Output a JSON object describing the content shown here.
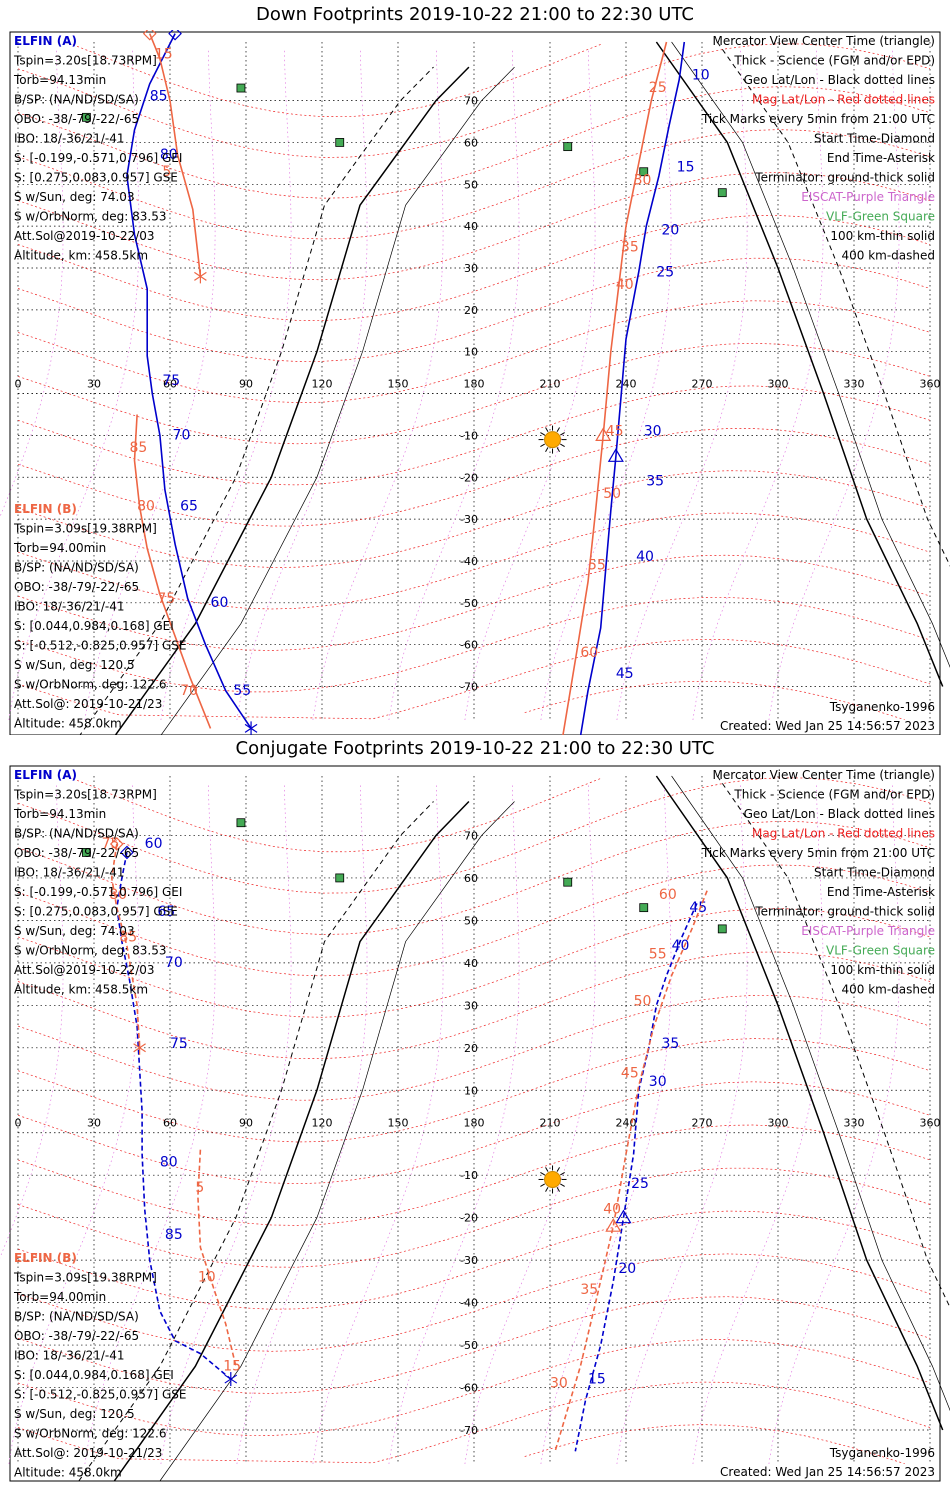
{
  "panels": [
    {
      "title": "Down Footprints 2019-10-22 21:00 to 22:30 UTC",
      "elfin_a": {
        "label": "ELFIN (A)",
        "lines": [
          "Tspin=3.20s[18.73RPM]",
          "Torb=94.13min",
          "B/SP: (NA/ND/SD/SA)",
          "OBO: -38/-79/-22/-65",
          "IBO: 18/-36/21/-41",
          "S: [-0.199,-0.571,0.796] GEI",
          "S: [0.275,0.083,0.957] GSE",
          "S w/Sun, deg: 74.03",
          "S w/OrbNorm, deg: 83.53",
          "Att.Sol@2019-10-22/03",
          "Altitude, km: 458.5km"
        ]
      },
      "elfin_b": {
        "label": "ELFIN (B)",
        "lines": [
          "Tspin=3.09s[19.38RPM]",
          "Torb=94.00min",
          "B/SP: (NA/ND/SD/SA)",
          "OBO: -38/-79/-22/-65",
          "IBO: 18/-36/21/-41",
          "S: [0.044,0.984,0.168] GEI",
          "S: [-0.512,-0.825,0.957] GSE",
          "S w/Sun, deg: 120.5",
          "S w/OrbNorm, deg: 122.6",
          "Att.Sol@: 2019-10-21/23",
          "Altitude: 458.0km"
        ]
      },
      "legend": [
        "Mercator View Center Time (triangle)",
        "Thick - Science (FGM and/or EPD)",
        "Geo Lat/Lon - Black dotted lines",
        "Mag Lat/Lon - Red dotted lines",
        "Tick Marks every 5min from 21:00 UTC",
        "Start Time-Diamond",
        "End Time-Asterisk",
        "Terminator: ground-thick solid",
        "EISCAT-Purple Triangle",
        "VLF-Green Square",
        "100 km-thin solid",
        "400 km-dashed"
      ],
      "model": "Tsyganenko-1996",
      "created": "Created: Wed Jan 25 14:56:57 2023"
    },
    {
      "title": "Conjugate Footprints 2019-10-22 21:00 to 22:30 UTC",
      "elfin_a": {
        "label": "ELFIN (A)",
        "lines": [
          "Tspin=3.20s[18.73RPM]",
          "Torb=94.13min",
          "B/SP: (NA/ND/SD/SA)",
          "OBO: -38/-79/-22/-65",
          "IBO: 18/-36/21/-41",
          "S: [-0.199,-0.571,0.796] GEI",
          "S: [0.275,0.083,0.957] GSE",
          "S w/Sun, deg: 74.03",
          "S w/OrbNorm, deg: 83.53",
          "Att.Sol@2019-10-22/03",
          "Altitude, km: 458.5km"
        ]
      },
      "elfin_b": {
        "label": "ELFIN (B)",
        "lines": [
          "Tspin=3.09s[19.38RPM]",
          "Torb=94.00min",
          "B/SP: (NA/ND/SD/SA)",
          "OBO: -38/-79/-22/-65",
          "IBO: 18/-36/21/-41",
          "S: [0.044,0.984,0.168] GEI",
          "S: [-0.512,-0.825,0.957] GSE",
          "S w/Sun, deg: 120.5",
          "S w/OrbNorm, deg: 122.6",
          "Att.Sol@: 2019-10-21/23",
          "Altitude: 458.0km"
        ]
      },
      "legend": [
        "Mercator View Center Time (triangle)",
        "Thick - Science (FGM and/or EPD)",
        "Geo Lat/Lon - Black dotted lines",
        "Mag Lat/Lon - Red dotted lines",
        "Tick Marks every 5min from 21:00 UTC",
        "Start Time-Diamond",
        "End Time-Asterisk",
        "Terminator: ground-thick solid",
        "EISCAT-Purple Triangle",
        "VLF-Green Square",
        "100 km-thin solid",
        "400 km-dashed"
      ],
      "model": "Tsyganenko-1996",
      "created": "Created: Wed Jan 25 14:56:57 2023"
    }
  ],
  "colors": {
    "elfin_a": "#0000cc",
    "elfin_b": "#ee6644",
    "mag_grid": "#ee2222",
    "geo_grid": "#000000",
    "eiscat": "#cc66cc",
    "vlf": "#44aa55",
    "sun": "#ffaa00"
  },
  "chart_data": [
    {
      "type": "scatter",
      "title": "Down Footprints 2019-10-22 21:00 to 22:30 UTC",
      "x_ticks": [
        0,
        30,
        60,
        90,
        120,
        150,
        180,
        210,
        240,
        270,
        300,
        330,
        360
      ],
      "y_ticks": [
        70,
        60,
        50,
        40,
        30,
        20,
        10,
        -10,
        -20,
        -30,
        -40,
        -50,
        -60,
        -70
      ],
      "xlim": [
        0,
        360
      ],
      "ylim": [
        -78,
        84
      ],
      "sun": [
        211,
        -11
      ],
      "vlf_stations": [
        [
          88,
          73
        ],
        [
          27,
          66
        ],
        [
          127,
          60
        ],
        [
          217,
          59
        ],
        [
          247,
          53
        ],
        [
          278,
          48
        ]
      ],
      "series": [
        {
          "name": "ELFIN (A)",
          "tracks": [
            {
              "points": [
                [
                  62,
                  86
                ],
                [
                  52,
                  74
                ],
                [
                  46,
                  63
                ],
                [
                  43,
                  52
                ],
                [
                  46,
                  38
                ],
                [
                  51,
                  25
                ],
                [
                  51,
                  9
                ],
                [
                  53,
                  0
                ],
                [
                  56,
                  -10
                ],
                [
                  58,
                  -23
                ],
                [
                  62,
                  -36
                ],
                [
                  67,
                  -49
                ],
                [
                  74,
                  -60
                ],
                [
                  82,
                  -71
                ],
                [
                  92,
                  -80
                ]
              ]
            },
            {
              "points": [
                [
                  263,
                  84
                ],
                [
                  261,
                  75
                ],
                [
                  257,
                  64
                ],
                [
                  253,
                  52
                ],
                [
                  248,
                  40
                ],
                [
                  245,
                  29
                ],
                [
                  240,
                  13
                ],
                [
                  236,
                  -15
                ],
                [
                  234,
                  -28
                ],
                [
                  232,
                  -42
                ],
                [
                  230,
                  -56
                ],
                [
                  225,
                  -71
                ],
                [
                  222,
                  -82
                ]
              ]
            }
          ],
          "ticks": [
            [
              52,
              70,
              "85"
            ],
            [
              56,
              56,
              "80"
            ],
            [
              57,
              2,
              "75"
            ],
            [
              61,
              -11,
              "70"
            ],
            [
              64,
              -28,
              "65"
            ],
            [
              76,
              -51,
              "60"
            ],
            [
              85,
              -72,
              "55"
            ],
            [
              266,
              75,
              "10"
            ],
            [
              260,
              53,
              "15"
            ],
            [
              254,
              38,
              "20"
            ],
            [
              252,
              28,
              "25"
            ],
            [
              247,
              -10,
              "30"
            ],
            [
              248,
              -22,
              "35"
            ],
            [
              244,
              -40,
              "40"
            ],
            [
              236,
              -68,
              "45"
            ]
          ]
        },
        {
          "name": "ELFIN (B)",
          "tracks": [
            {
              "points": [
                [
                  52,
                  86
                ],
                [
                  56,
                  80
                ],
                [
                  60,
                  70
                ],
                [
                  63,
                  57
                ],
                [
                  69,
                  44
                ],
                [
                  72,
                  28
                ]
              ]
            },
            {
              "points": [
                [
                  47,
                  -5
                ],
                [
                  46,
                  -16
                ],
                [
                  48,
                  -27
                ],
                [
                  51,
                  -37
                ],
                [
                  56,
                  -48
                ],
                [
                  62,
                  -58
                ],
                [
                  68,
                  -68
                ],
                [
                  76,
                  -80
                ]
              ]
            },
            {
              "points": [
                [
                  256,
                  84
                ],
                [
                  250,
                  70
                ],
                [
                  245,
                  55
                ],
                [
                  240,
                  40
                ],
                [
                  237,
                  25
                ],
                [
                  234,
                  10
                ],
                [
                  231,
                  -10
                ],
                [
                  228,
                  -28
                ],
                [
                  225,
                  -45
                ],
                [
                  221,
                  -60
                ],
                [
                  215,
                  -82
                ]
              ]
            }
          ],
          "ticks": [
            [
              54,
              80,
              "15"
            ],
            [
              57,
              52,
              "5"
            ],
            [
              44,
              -14,
              "85"
            ],
            [
              47,
              -28,
              "80"
            ],
            [
              55,
              -50,
              "75"
            ],
            [
              64,
              -72,
              "70"
            ],
            [
              249,
              72,
              "25"
            ],
            [
              243,
              50,
              "30"
            ],
            [
              238,
              34,
              "35"
            ],
            [
              236,
              25,
              "40"
            ],
            [
              232,
              -10,
              "45"
            ],
            [
              231,
              -25,
              "50"
            ],
            [
              225,
              -42,
              "55"
            ],
            [
              222,
              -63,
              "60"
            ]
          ]
        }
      ]
    },
    {
      "type": "scatter",
      "title": "Conjugate Footprints 2019-10-22 21:00 to 22:30 UTC",
      "x_ticks": [
        0,
        30,
        60,
        90,
        120,
        150,
        180,
        210,
        240,
        270,
        300,
        330,
        360
      ],
      "y_ticks": [
        70,
        60,
        50,
        40,
        30,
        20,
        10,
        -10,
        -20,
        -30,
        -40,
        -50,
        -60,
        -70
      ],
      "xlim": [
        0,
        360
      ],
      "ylim": [
        -78,
        84
      ],
      "sun": [
        211,
        -11
      ],
      "vlf_stations": [
        [
          88,
          73
        ],
        [
          27,
          66
        ],
        [
          127,
          60
        ],
        [
          217,
          59
        ],
        [
          247,
          53
        ],
        [
          278,
          48
        ]
      ],
      "series": [
        {
          "name": "ELFIN (A)",
          "tracks": [
            {
              "points": [
                [
                  43,
                  66
                ],
                [
                  41,
                  60
                ],
                [
                  39,
                  53
                ],
                [
                  41,
                  45
                ],
                [
                  44,
                  36
                ],
                [
                  47,
                  25
                ],
                [
                  48,
                  15
                ],
                [
                  49,
                  5
                ],
                [
                  49,
                  -5
                ],
                [
                  50,
                  -18
                ],
                [
                  52,
                  -30
                ],
                [
                  56,
                  -42
                ],
                [
                  62,
                  -49
                ],
                [
                  72,
                  -52
                ],
                [
                  84,
                  -58
                ]
              ],
              "dashed": true
            },
            {
              "points": [
                [
                  268,
                  54
                ],
                [
                  262,
                  46
                ],
                [
                  256,
                  37
                ],
                [
                  252,
                  30
                ],
                [
                  249,
                  20
                ],
                [
                  245,
                  10
                ],
                [
                  243,
                  -5
                ],
                [
                  239,
                  -20
                ],
                [
                  235,
                  -35
                ],
                [
                  230,
                  -50
                ],
                [
                  224,
                  -63
                ],
                [
                  220,
                  -75
                ]
              ],
              "dashed": true
            }
          ],
          "ticks": [
            [
              50,
              67,
              "60"
            ],
            [
              55,
              51,
              "65"
            ],
            [
              58,
              39,
              "70"
            ],
            [
              60,
              20,
              "75"
            ],
            [
              56,
              -8,
              "80"
            ],
            [
              58,
              -25,
              "85"
            ],
            [
              265,
              52,
              "45"
            ],
            [
              258,
              43,
              "40"
            ],
            [
              254,
              20,
              "35"
            ],
            [
              249,
              11,
              "30"
            ],
            [
              242,
              -13,
              "25"
            ],
            [
              237,
              -33,
              "20"
            ],
            [
              225,
              -59,
              "15"
            ]
          ]
        },
        {
          "name": "ELFIN (B)",
          "tracks": [
            {
              "points": [
                [
                  39,
                  68
                ],
                [
                  37,
                  60
                ],
                [
                  39,
                  53
                ],
                [
                  43,
                  44
                ],
                [
                  47,
                  30
                ],
                [
                  48,
                  20
                ]
              ],
              "dashed": true
            },
            {
              "points": [
                [
                  72,
                  -4
                ],
                [
                  71,
                  -15
                ],
                [
                  72,
                  -27
                ],
                [
                  78,
                  -38
                ],
                [
                  82,
                  -45
                ],
                [
                  86,
                  -55
                ]
              ],
              "dashed": true
            },
            {
              "points": [
                [
                  272,
                  57
                ],
                [
                  266,
                  48
                ],
                [
                  258,
                  37
                ],
                [
                  251,
                  25
                ],
                [
                  245,
                  11
                ],
                [
                  240,
                  -5
                ],
                [
                  235,
                  -22
                ],
                [
                  228,
                  -40
                ],
                [
                  222,
                  -55
                ],
                [
                  212,
                  -75
                ]
              ],
              "dashed": true
            }
          ],
          "ticks": [
            [
              33,
              67,
              "75"
            ],
            [
              36,
              55,
              "80"
            ],
            [
              40,
              45,
              "85"
            ],
            [
              70,
              -14,
              "5"
            ],
            [
              71,
              -35,
              "10"
            ],
            [
              81,
              -56,
              "15"
            ],
            [
              253,
              55,
              "60"
            ],
            [
              249,
              41,
              "55"
            ],
            [
              243,
              30,
              "50"
            ],
            [
              238,
              13,
              "45"
            ],
            [
              231,
              -19,
              "40"
            ],
            [
              222,
              -38,
              "35"
            ],
            [
              210,
              -60,
              "30"
            ]
          ]
        }
      ]
    }
  ]
}
